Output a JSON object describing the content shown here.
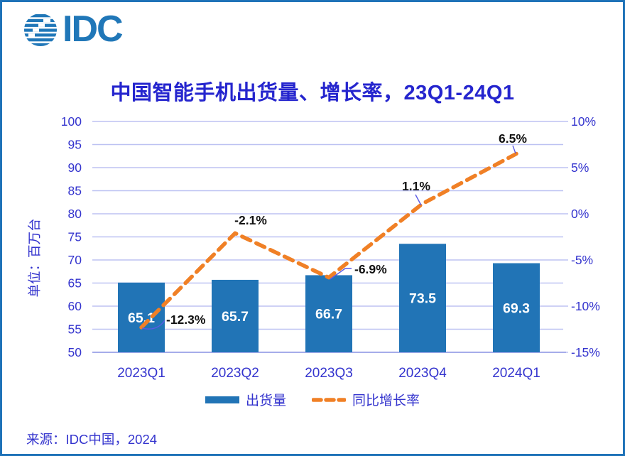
{
  "logo": {
    "text": "IDC"
  },
  "title": "中国智能手机出货量、增长率，23Q1-24Q1",
  "source": "来源：IDC中国，2024",
  "legend": [
    {
      "label": "出货量",
      "type": "bar"
    },
    {
      "label": "同比增长率",
      "type": "line"
    }
  ],
  "colors": {
    "bar": "#2174B6",
    "line": "#F08026",
    "grid": "#BDC2F2",
    "axis_line": "#A6ACEA",
    "axis_text": "#3434CE",
    "title_text": "#2525CE",
    "point_label": "#111111",
    "bar_label": "#FFFFFF",
    "leader": "#5A5AE6",
    "frame_border": "#1E72B8",
    "logo_blue": "#2077B8"
  },
  "chart_data": {
    "type": "bar+line",
    "title": "中国智能手机出货量、增长率，23Q1-24Q1",
    "categories": [
      "2023Q1",
      "2023Q2",
      "2023Q3",
      "2023Q4",
      "2024Q1"
    ],
    "series": [
      {
        "name": "出货量",
        "type": "bar",
        "axis": "left",
        "values": [
          65.1,
          65.7,
          66.7,
          73.5,
          69.3
        ],
        "labels": [
          "65.1",
          "65.7",
          "66.7",
          "73.5",
          "69.3"
        ],
        "color": "#2174B6"
      },
      {
        "name": "同比增长率",
        "type": "line",
        "axis": "right",
        "values": [
          -12.3,
          -2.1,
          -6.9,
          1.1,
          6.5
        ],
        "labels": [
          "-12.3%",
          "-2.1%",
          "-6.9%",
          "1.1%",
          "6.5%"
        ],
        "color": "#F08026",
        "style": "dashed"
      }
    ],
    "left_axis": {
      "label": "单位：百万台",
      "min": 50,
      "max": 100,
      "tick_step": 5,
      "ticks": [
        100,
        95,
        90,
        85,
        80,
        75,
        70,
        65,
        60,
        55,
        50
      ]
    },
    "right_axis": {
      "min": -15,
      "max": 10,
      "grid_step": 2.5,
      "label_step": 5,
      "tick_labels": [
        "10%",
        "5%",
        "0%",
        "-5%",
        "-10%",
        "-15%"
      ]
    },
    "grid": true,
    "legend_position": "bottom"
  }
}
